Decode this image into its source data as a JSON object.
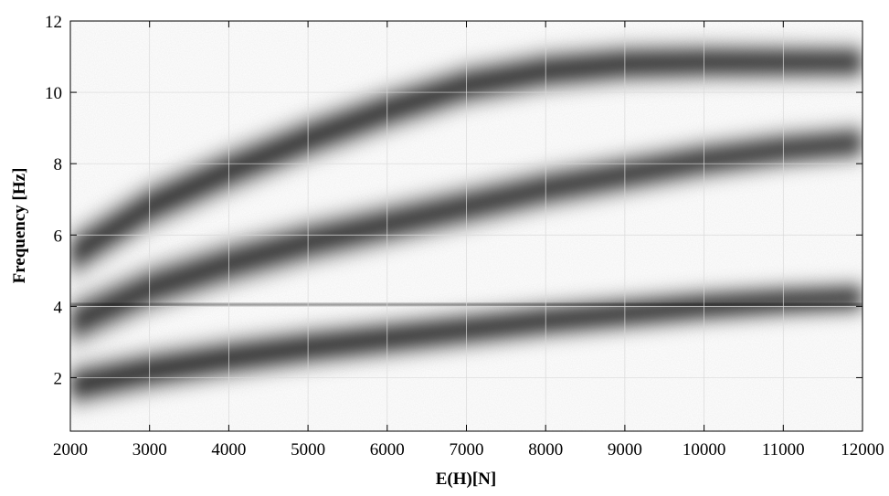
{
  "chart_data": {
    "type": "heatmap",
    "xlabel": "E(H)[N]",
    "ylabel": "Frequency [Hz]",
    "xlim": [
      2000,
      12000
    ],
    "ylim": [
      0.5,
      12
    ],
    "xticks": [
      "2000",
      "3000",
      "4000",
      "5000",
      "6000",
      "7000",
      "8000",
      "9000",
      "10000",
      "11000",
      "12000"
    ],
    "yticks": [
      "2",
      "4",
      "6",
      "8",
      "10",
      "12"
    ],
    "grid": true,
    "colormap": "gray-reversed (white = low density, black = high density)",
    "colors": {
      "low": "#ffffff",
      "high": "#000000",
      "grid": "#d9d9d9"
    },
    "series": [
      {
        "x": [
          2000,
          3000,
          4000,
          5000,
          6000,
          7000,
          8000,
          9000,
          10000,
          11000,
          12000
        ],
        "y": [
          1.75,
          2.2,
          2.55,
          2.85,
          3.1,
          3.35,
          3.6,
          3.8,
          4.0,
          4.15,
          4.25
        ]
      },
      {
        "x": [
          2000,
          12000
        ],
        "y": [
          4.05,
          4.05
        ]
      },
      {
        "x": [
          2000,
          3000,
          4000,
          5000,
          6000,
          7000,
          8000,
          9000,
          10000,
          11000,
          12000
        ],
        "y": [
          3.5,
          4.5,
          5.2,
          5.8,
          6.3,
          6.8,
          7.3,
          7.7,
          8.1,
          8.4,
          8.6
        ]
      },
      {
        "x": [
          2000,
          3000,
          4000,
          5000,
          6000,
          7000,
          8000,
          9000,
          10000,
          11000,
          12000
        ],
        "y": [
          5.4,
          6.8,
          7.8,
          8.7,
          9.5,
          10.2,
          10.6,
          10.8,
          10.85,
          10.85,
          10.85
        ]
      }
    ]
  }
}
